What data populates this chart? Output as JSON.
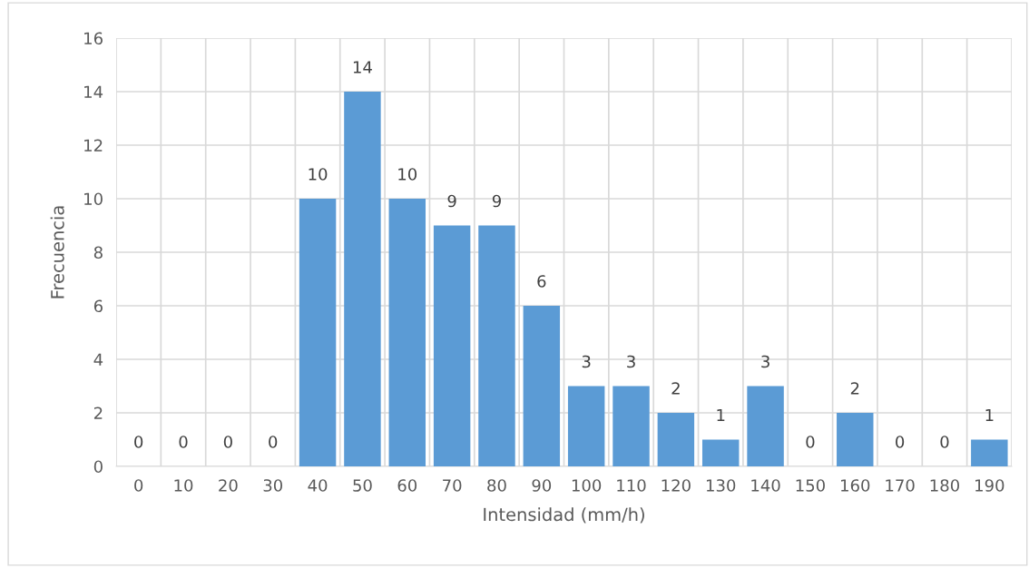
{
  "chart_data": {
    "type": "bar",
    "xlabel": "Intensidad (mm/h)",
    "ylabel": "Frecuencia",
    "categories": [
      "0",
      "10",
      "20",
      "30",
      "40",
      "50",
      "60",
      "70",
      "80",
      "90",
      "100",
      "110",
      "120",
      "130",
      "140",
      "150",
      "160",
      "170",
      "180",
      "190"
    ],
    "values": [
      0,
      0,
      0,
      0,
      10,
      14,
      10,
      9,
      9,
      6,
      3,
      3,
      2,
      1,
      3,
      0,
      2,
      0,
      0,
      1
    ],
    "color": "#5b9bd5",
    "ylim": [
      0,
      16
    ],
    "yticks": [
      0,
      2,
      4,
      6,
      8,
      10,
      12,
      14,
      16
    ],
    "grid": true,
    "data_labels": true
  }
}
